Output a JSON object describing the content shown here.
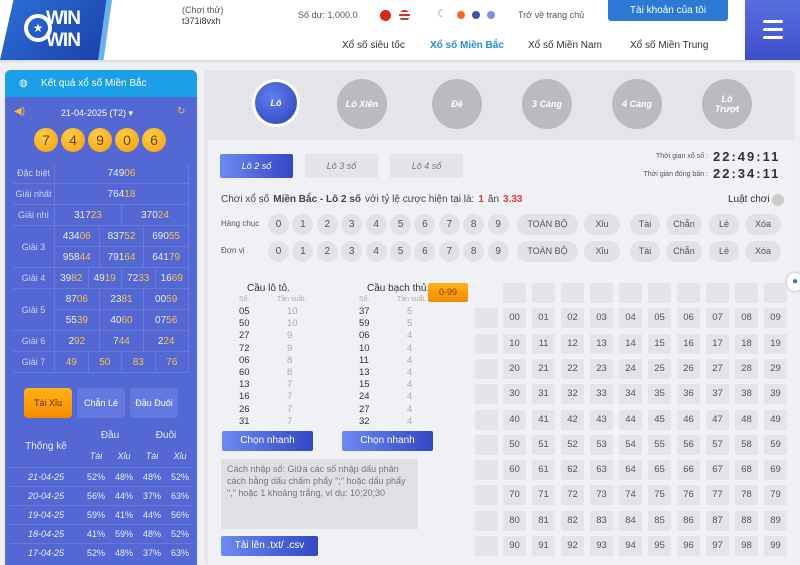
{
  "header": {
    "logo": "WIN WIN",
    "user_mode": "(Chơi thử)",
    "username": "t371i8vxh",
    "balance": "Số dư: 1,000.0",
    "home_link": "Trở về trang chủ",
    "account_button": "Tài khoản của tôi",
    "nav": [
      "Xổ số siêu tốc",
      "Xổ số Miền Bắc",
      "Xổ số Miền Nam",
      "Xổ số Miền Trung"
    ],
    "active_nav": 1,
    "theme_dots": [
      "#f26522",
      "#3f51b5",
      "#7b8ff0"
    ]
  },
  "results": {
    "title": "Kết quả xổ số Miền Bắc",
    "date": "21-04-2025 (T2)",
    "balls": [
      "7",
      "4",
      "9",
      "0",
      "6"
    ],
    "prizes": [
      {
        "label": "Đặc biệt",
        "rows": [
          [
            "74906"
          ]
        ]
      },
      {
        "label": "Giải nhất",
        "rows": [
          [
            "76418"
          ]
        ]
      },
      {
        "label": "Giải nhì",
        "rows": [
          [
            "31723",
            "37024"
          ]
        ]
      },
      {
        "label": "Giải 3",
        "rows": [
          [
            "43406",
            "83752",
            "69055"
          ],
          [
            "95844",
            "79164",
            "64179"
          ]
        ]
      },
      {
        "label": "Giải 4",
        "rows": [
          [
            "3982",
            "4919",
            "7233",
            "1669"
          ]
        ]
      },
      {
        "label": "Giải 5",
        "rows": [
          [
            "8706",
            "2381",
            "0059"
          ],
          [
            "5539",
            "4060",
            "0756"
          ]
        ]
      },
      {
        "label": "Giải 6",
        "rows": [
          [
            "292",
            "744",
            "224"
          ]
        ]
      },
      {
        "label": "Giải 7",
        "rows": [
          [
            "49",
            "50",
            "83",
            "76"
          ]
        ]
      }
    ]
  },
  "stats": {
    "tabs": [
      "Tài Xỉu",
      "Chẵn Lẻ",
      "Đầu Đuôi"
    ],
    "active_tab": 0,
    "header": "Thống kê",
    "groups": [
      "Đầu",
      "Đuôi"
    ],
    "sub": [
      "Tài",
      "Xỉu",
      "Tài",
      "Xỉu"
    ],
    "rows": [
      [
        "21-04-25",
        "52%",
        "48%",
        "48%",
        "52%"
      ],
      [
        "20-04-25",
        "56%",
        "44%",
        "37%",
        "63%"
      ],
      [
        "19-04-25",
        "59%",
        "41%",
        "44%",
        "56%"
      ],
      [
        "18-04-25",
        "41%",
        "59%",
        "48%",
        "52%"
      ],
      [
        "17-04-25",
        "52%",
        "48%",
        "37%",
        "63%"
      ]
    ]
  },
  "game": {
    "types": [
      "Lô",
      "Lô Xiên",
      "Đề",
      "3 Càng",
      "4 Càng",
      "Lô Trượt"
    ],
    "active_type": 0,
    "subtypes": [
      "Lô 2 số",
      "Lô 3 số",
      "Lô 4 số"
    ],
    "active_sub": 0,
    "draw_time_label": "Thời gian xổ số :",
    "draw_time": "22:49:11",
    "close_time_label": "Thời gian đóng bán :",
    "close_time": "22:34:11",
    "odds_prefix": "Chơi xổ số",
    "odds_region": "Miền Bắc - Lô 2 số",
    "odds_mid": "với tỷ lệ cược hiện tại là:",
    "odds_a": "1",
    "odds_an": "ăn",
    "odds_b": "3.33",
    "rules": "Luật chơi",
    "row_labels": [
      "Hàng chục",
      "Đơn vị"
    ],
    "digits": [
      "0",
      "1",
      "2",
      "3",
      "4",
      "5",
      "6",
      "7",
      "8",
      "9"
    ],
    "quick": [
      "TOÀN BỘ",
      "Xỉu",
      "Tài",
      "Chẵn",
      "Lẻ",
      "Xóa"
    ],
    "range_button": "0-99"
  },
  "cau": [
    {
      "title": "Cầu lô tô.",
      "col1": "Số.",
      "col2": "Tần suất.",
      "rows": [
        [
          "05",
          "10"
        ],
        [
          "50",
          "10"
        ],
        [
          "27",
          "9"
        ],
        [
          "72",
          "9"
        ],
        [
          "06",
          "8"
        ],
        [
          "60",
          "8"
        ],
        [
          "13",
          "7"
        ],
        [
          "16",
          "7"
        ],
        [
          "26",
          "7"
        ],
        [
          "31",
          "7"
        ]
      ],
      "button": "Chọn nhanh"
    },
    {
      "title": "Cầu bạch thủ.",
      "col1": "Số.",
      "col2": "Tần suất.",
      "rows": [
        [
          "37",
          "5"
        ],
        [
          "59",
          "5"
        ],
        [
          "06",
          "4"
        ],
        [
          "10",
          "4"
        ],
        [
          "11",
          "4"
        ],
        [
          "13",
          "4"
        ],
        [
          "15",
          "4"
        ],
        [
          "24",
          "4"
        ],
        [
          "27",
          "4"
        ],
        [
          "32",
          "4"
        ]
      ],
      "button": "Chọn nhanh"
    }
  ],
  "input_hint": "Cách nhập số: Giữa các số nhập dấu phân cách bằng dấu chấm phẩy \";\" hoặc dấu phẩy \",\" hoặc 1 khoảng trắng, ví dụ: 10;20;30",
  "upload_button": "Tải lên .txt/ .csv"
}
